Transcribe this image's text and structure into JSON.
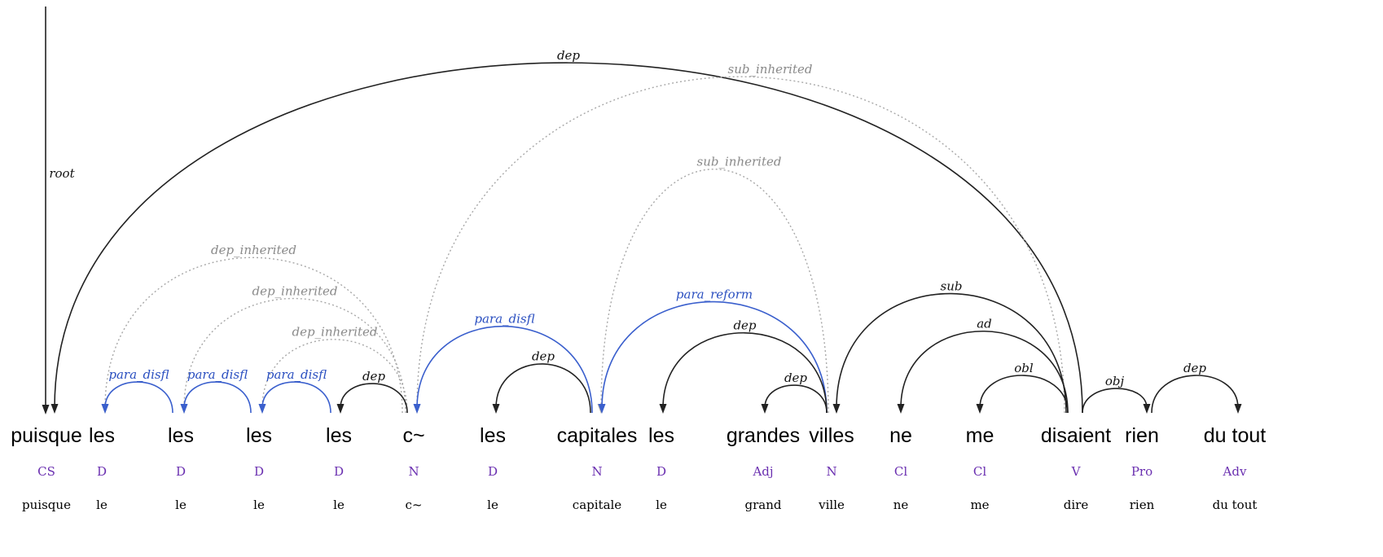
{
  "tokens": [
    {
      "word": "puisque",
      "pos": "CS",
      "lemma": "puisque"
    },
    {
      "word": "les",
      "pos": "D",
      "lemma": "le"
    },
    {
      "word": "les",
      "pos": "D",
      "lemma": "le"
    },
    {
      "word": "les",
      "pos": "D",
      "lemma": "le"
    },
    {
      "word": "les",
      "pos": "D",
      "lemma": "le"
    },
    {
      "word": "c~",
      "pos": "N",
      "lemma": "c~"
    },
    {
      "word": "les",
      "pos": "D",
      "lemma": "le"
    },
    {
      "word": "capitales",
      "pos": "N",
      "lemma": "capitale"
    },
    {
      "word": "les",
      "pos": "D",
      "lemma": "le"
    },
    {
      "word": "grandes",
      "pos": "Adj",
      "lemma": "grand"
    },
    {
      "word": "villes",
      "pos": "N",
      "lemma": "ville"
    },
    {
      "word": "ne",
      "pos": "Cl",
      "lemma": "ne"
    },
    {
      "word": "me",
      "pos": "Cl",
      "lemma": "me"
    },
    {
      "word": "disaient",
      "pos": "V",
      "lemma": "dire"
    },
    {
      "word": "rien",
      "pos": "Pro",
      "lemma": "rien"
    },
    {
      "word": "du tout",
      "pos": "Adv",
      "lemma": "du tout"
    }
  ],
  "root": {
    "target": 0,
    "label": "root"
  },
  "arcs": [
    {
      "from": 13,
      "to": 0,
      "label": "dep",
      "style": "black"
    },
    {
      "from": 13,
      "to": 5,
      "label": "sub_inherited",
      "style": "gray"
    },
    {
      "from": 10,
      "to": 7,
      "label": "sub_inherited",
      "style": "gray"
    },
    {
      "from": 5,
      "to": 1,
      "label": "dep_inherited",
      "style": "gray"
    },
    {
      "from": 5,
      "to": 2,
      "label": "dep_inherited",
      "style": "gray"
    },
    {
      "from": 5,
      "to": 3,
      "label": "dep_inherited",
      "style": "gray"
    },
    {
      "from": 2,
      "to": 1,
      "label": "para_disfl",
      "style": "blue"
    },
    {
      "from": 3,
      "to": 2,
      "label": "para_disfl",
      "style": "blue"
    },
    {
      "from": 4,
      "to": 3,
      "label": "para_disfl",
      "style": "blue"
    },
    {
      "from": 5,
      "to": 4,
      "label": "dep",
      "style": "black"
    },
    {
      "from": 7,
      "to": 5,
      "label": "para_disfl",
      "style": "blue"
    },
    {
      "from": 7,
      "to": 6,
      "label": "dep",
      "style": "black"
    },
    {
      "from": 10,
      "to": 7,
      "label": "para_reform",
      "style": "blue"
    },
    {
      "from": 10,
      "to": 8,
      "label": "dep",
      "style": "black"
    },
    {
      "from": 10,
      "to": 9,
      "label": "dep",
      "style": "black"
    },
    {
      "from": 13,
      "to": 10,
      "label": "sub",
      "style": "black"
    },
    {
      "from": 13,
      "to": 11,
      "label": "ad",
      "style": "black"
    },
    {
      "from": 13,
      "to": 12,
      "label": "obl",
      "style": "black"
    },
    {
      "from": 13,
      "to": 14,
      "label": "obj",
      "style": "black"
    },
    {
      "from": 14,
      "to": 15,
      "label": "dep",
      "style": "black"
    }
  ]
}
